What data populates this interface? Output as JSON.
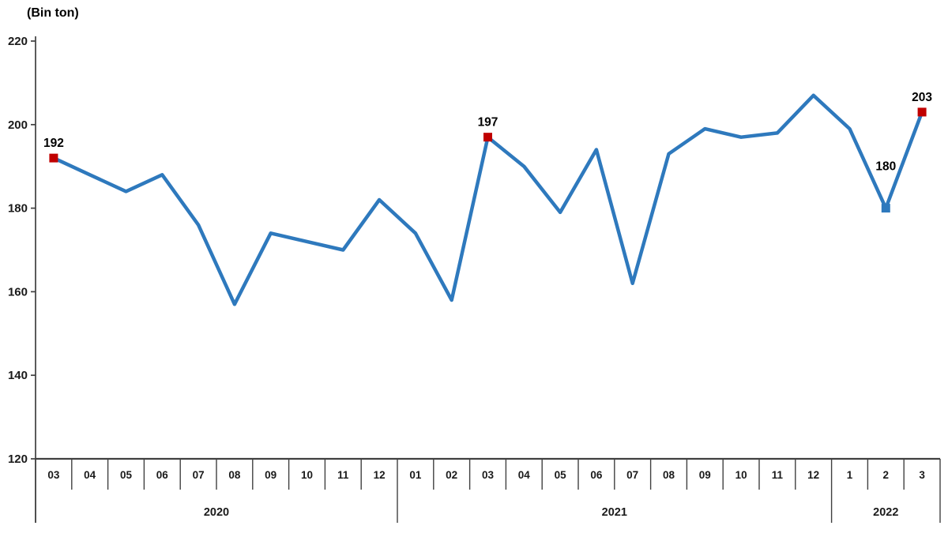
{
  "header": {
    "unit_label": "(Bin ton)"
  },
  "chart_data": {
    "type": "line",
    "title": "",
    "ylabel": "(Bin ton)",
    "xlabel": "",
    "unit": "Bin ton",
    "ylim": [
      120,
      220
    ],
    "ytick_step": 20,
    "yticks": [
      220,
      200,
      180,
      160,
      140,
      120
    ],
    "grid": false,
    "legend": "none",
    "groups": [
      {
        "year": "2020",
        "months": [
          "03",
          "04",
          "05",
          "06",
          "07",
          "08",
          "09",
          "10",
          "11",
          "12"
        ]
      },
      {
        "year": "2021",
        "months": [
          "01",
          "02",
          "03",
          "04",
          "05",
          "06",
          "07",
          "08",
          "09",
          "10",
          "11",
          "12"
        ]
      },
      {
        "year": "2022",
        "months": [
          "1",
          "2",
          "3"
        ]
      }
    ],
    "values": [
      192,
      188,
      184,
      188,
      176,
      157,
      174,
      172,
      170,
      182,
      174,
      158,
      197,
      190,
      179,
      194,
      162,
      193,
      199,
      197,
      198,
      207,
      199,
      180,
      203
    ],
    "annotations": [
      {
        "index": 0,
        "label": "192",
        "marker": "red",
        "label_position": "above"
      },
      {
        "index": 12,
        "label": "197",
        "marker": "red",
        "label_position": "above"
      },
      {
        "index": 23,
        "label": "180",
        "marker": "blue",
        "label_position": "above-far"
      },
      {
        "index": 24,
        "label": "203",
        "marker": "red",
        "label_position": "above"
      }
    ],
    "colors": {
      "line": "#2E79BD",
      "marker_red": "#C00000",
      "axis": "#404040",
      "tick": "#404040",
      "text": "#1a1a1a",
      "data_label": "#000000"
    }
  }
}
